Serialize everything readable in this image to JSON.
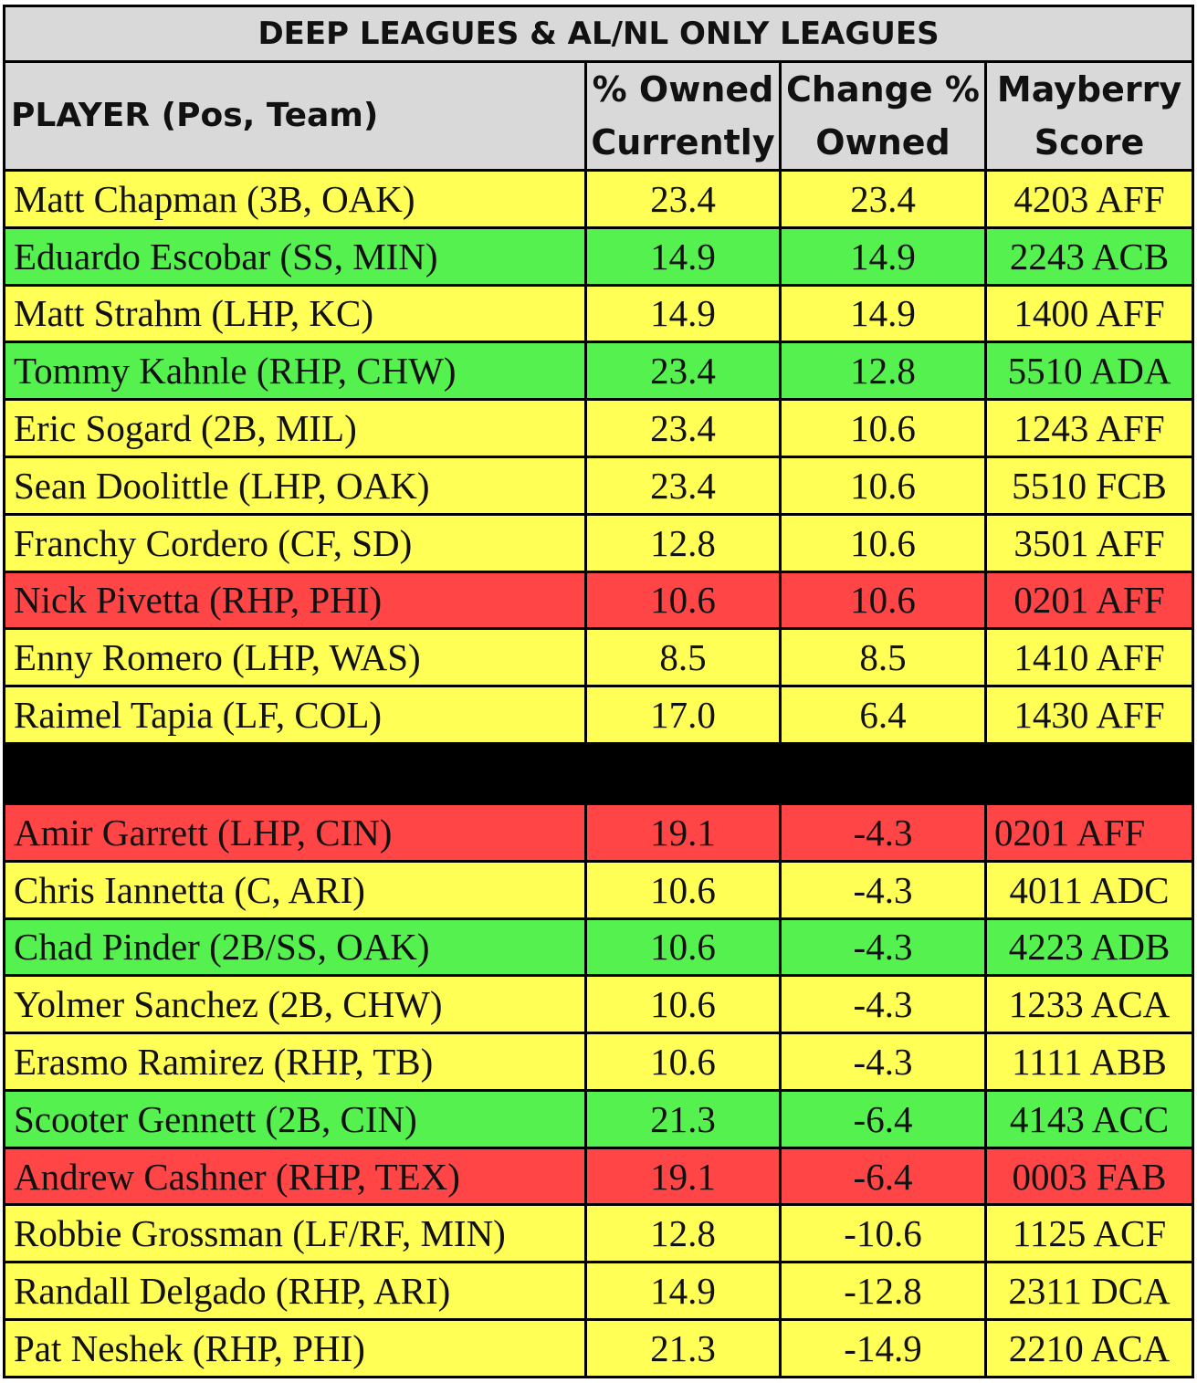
{
  "table": {
    "title": "DEEP LEAGUES & AL/NL ONLY LEAGUES",
    "headers": {
      "player": "PLAYER (Pos, Team)",
      "owned": [
        "% Owned",
        "Currently"
      ],
      "change": [
        "Change %",
        "Owned"
      ],
      "score": [
        "Mayberry",
        "Score"
      ]
    },
    "colors": {
      "yellow": "#ffff55",
      "green": "#55f14f",
      "red": "#ff4545",
      "header": "#d9d9d9",
      "separator": "#000000"
    },
    "risers": [
      {
        "player": "Matt Chapman (3B, OAK)",
        "owned": "23.4",
        "change": "23.4",
        "score": "4203 AFF",
        "color": "yellow"
      },
      {
        "player": "Eduardo Escobar (SS, MIN)",
        "owned": "14.9",
        "change": "14.9",
        "score": "2243 ACB",
        "color": "green"
      },
      {
        "player": "Matt Strahm (LHP, KC)",
        "owned": "14.9",
        "change": "14.9",
        "score": "1400 AFF",
        "color": "yellow"
      },
      {
        "player": "Tommy Kahnle (RHP, CHW)",
        "owned": "23.4",
        "change": "12.8",
        "score": "5510 ADA",
        "color": "green"
      },
      {
        "player": "Eric Sogard (2B, MIL)",
        "owned": "23.4",
        "change": "10.6",
        "score": "1243 AFF",
        "color": "yellow"
      },
      {
        "player": "Sean Doolittle (LHP, OAK)",
        "owned": "23.4",
        "change": "10.6",
        "score": "5510 FCB",
        "color": "yellow"
      },
      {
        "player": "Franchy Cordero (CF, SD)",
        "owned": "12.8",
        "change": "10.6",
        "score": "3501 AFF",
        "color": "yellow"
      },
      {
        "player": "Nick Pivetta (RHP, PHI)",
        "owned": "10.6",
        "change": "10.6",
        "score": "0201 AFF",
        "color": "red"
      },
      {
        "player": "Enny Romero (LHP, WAS)",
        "owned": "8.5",
        "change": "8.5",
        "score": "1410 AFF",
        "color": "yellow"
      },
      {
        "player": "Raimel Tapia (LF, COL)",
        "owned": "17.0",
        "change": "6.4",
        "score": "1430 AFF",
        "color": "yellow"
      }
    ],
    "fallers": [
      {
        "player": "Amir Garrett (LHP, CIN)",
        "owned": "19.1",
        "change": "-4.3",
        "score": "0201 AFF",
        "color": "red",
        "align": "left"
      },
      {
        "player": "Chris Iannetta (C, ARI)",
        "owned": "10.6",
        "change": "-4.3",
        "score": "4011 ADC",
        "color": "yellow"
      },
      {
        "player": "Chad Pinder (2B/SS, OAK)",
        "owned": "10.6",
        "change": "-4.3",
        "score": "4223 ADB",
        "color": "green"
      },
      {
        "player": "Yolmer Sanchez (2B, CHW)",
        "owned": "10.6",
        "change": "-4.3",
        "score": "1233 ACA",
        "color": "yellow"
      },
      {
        "player": "Erasmo Ramirez (RHP, TB)",
        "owned": "10.6",
        "change": "-4.3",
        "score": "1111 ABB",
        "color": "yellow"
      },
      {
        "player": "Scooter Gennett (2B, CIN)",
        "owned": "21.3",
        "change": "-6.4",
        "score": "4143 ACC",
        "color": "green"
      },
      {
        "player": "Andrew Cashner (RHP, TEX)",
        "owned": "19.1",
        "change": "-6.4",
        "score": "0003 FAB",
        "color": "red"
      },
      {
        "player": "Robbie Grossman (LF/RF, MIN)",
        "owned": "12.8",
        "change": "-10.6",
        "score": "1125 ACF",
        "color": "yellow"
      },
      {
        "player": "Randall Delgado (RHP, ARI)",
        "owned": "14.9",
        "change": "-12.8",
        "score": "2311 DCA",
        "color": "yellow"
      },
      {
        "player": "Pat Neshek (RHP, PHI)",
        "owned": "21.3",
        "change": "-14.9",
        "score": "2210 ACA",
        "color": "yellow"
      }
    ]
  }
}
